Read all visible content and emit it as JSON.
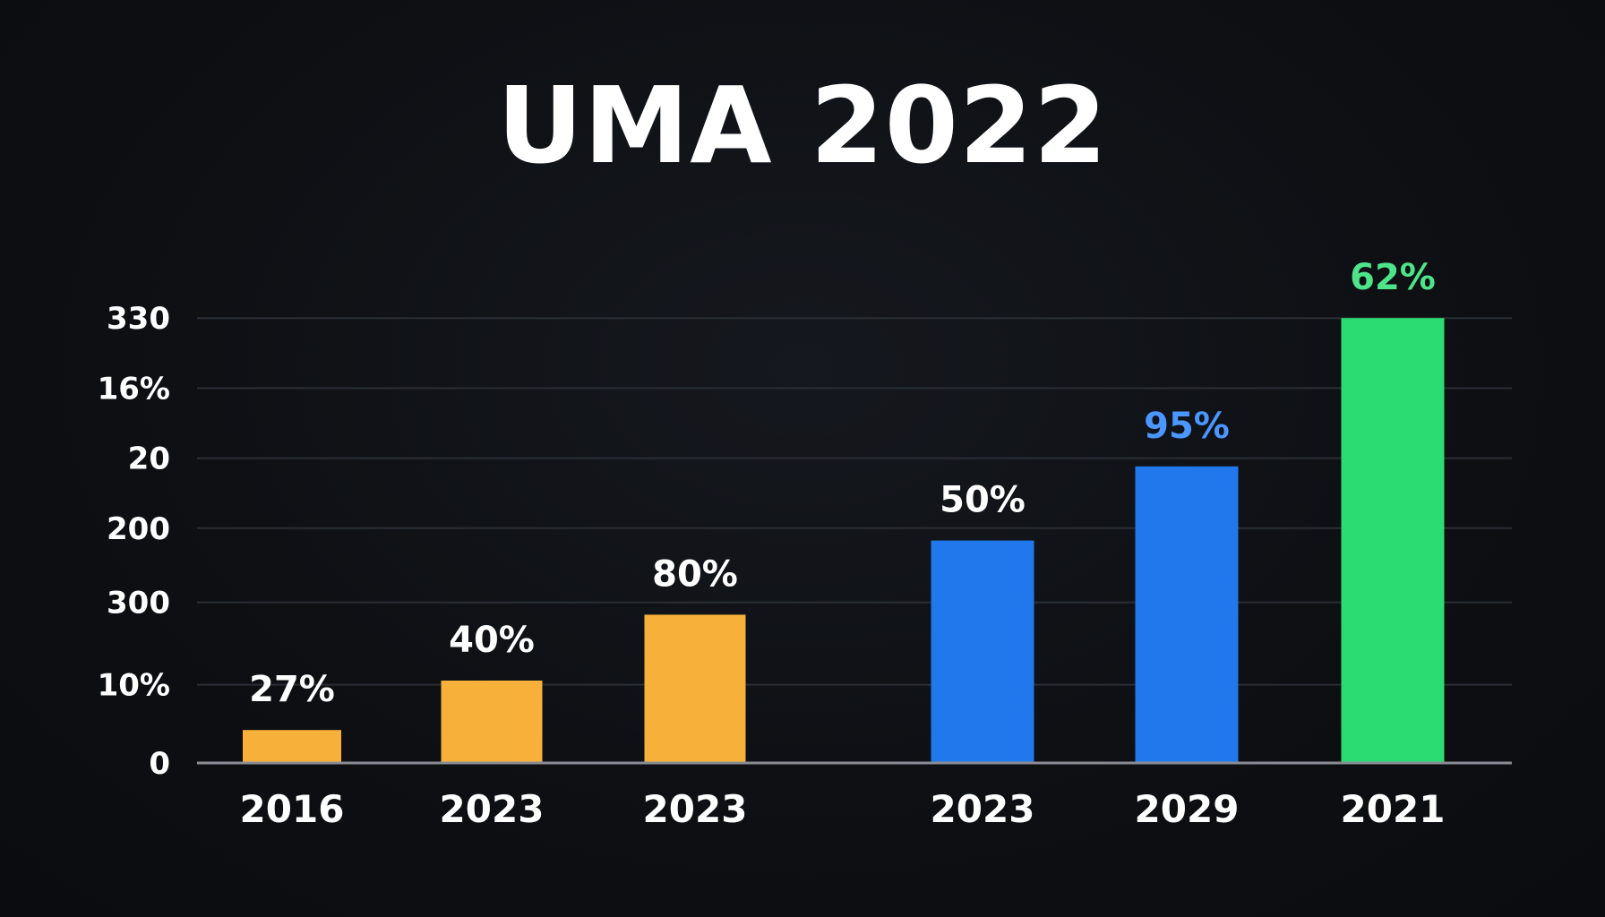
{
  "chart_data": {
    "type": "bar",
    "title": "UMA 2022",
    "xlabel": "",
    "ylabel": "",
    "y_tick_labels": [
      "0",
      "10%",
      "300",
      "200",
      "20",
      "16%",
      "330"
    ],
    "ylim": [
      0,
      6
    ],
    "grid": true,
    "categories": [
      "2016",
      "2023",
      "2023",
      "2023",
      "2029",
      "2021"
    ],
    "values": [
      0.4,
      1.0,
      1.8,
      2.7,
      3.6,
      5.4
    ],
    "data_labels": [
      "27%",
      "40%",
      "80%",
      "50%",
      "95%",
      "62%"
    ],
    "bar_colors": [
      "#f7b13a",
      "#f7b13a",
      "#f7b13a",
      "#2178ec",
      "#2178ec",
      "#2bdc72"
    ],
    "label_colors": [
      "#ffffff",
      "#ffffff",
      "#ffffff",
      "#ffffff",
      "#4b96ff",
      "#4ee58a"
    ],
    "grid_color": "#2a2e35",
    "axis_color": "#8a8d93"
  }
}
